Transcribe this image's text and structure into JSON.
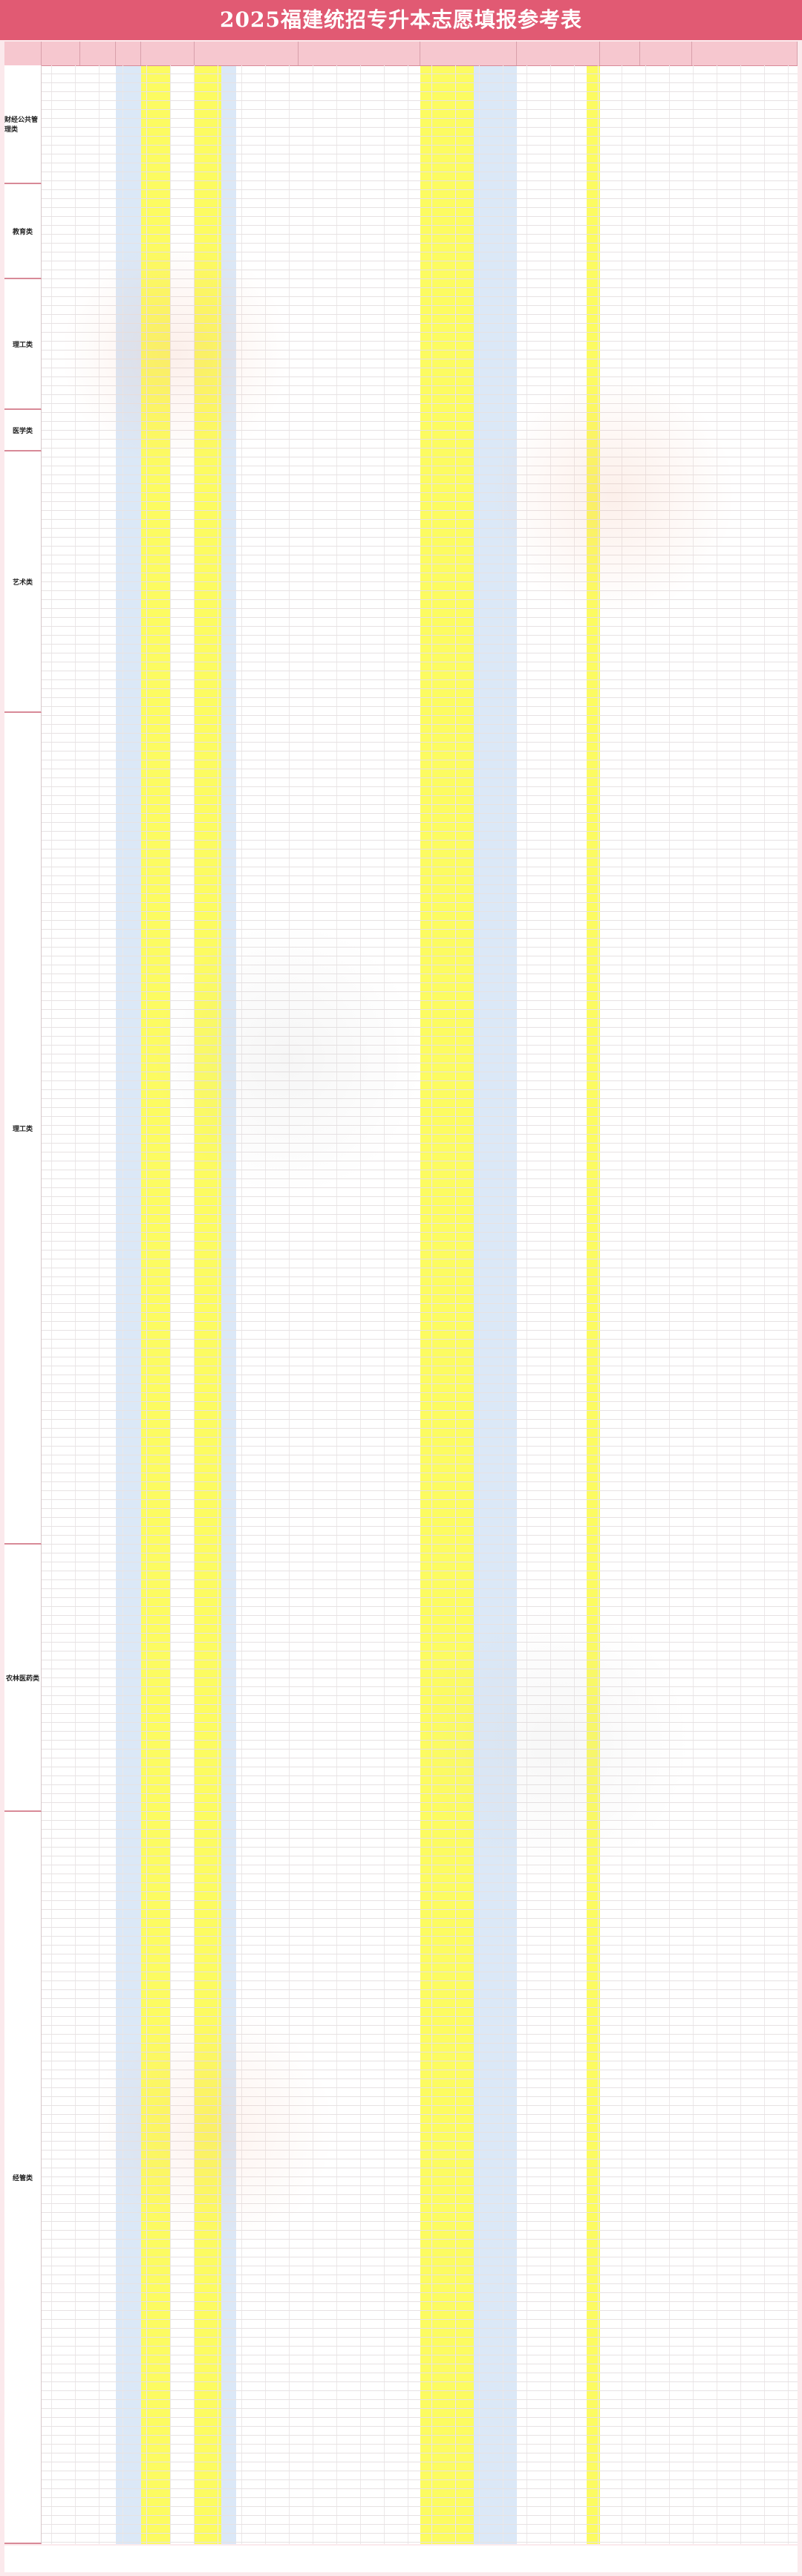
{
  "page": {
    "title": "2025福建统招专升本志愿填报参考表"
  },
  "colors": {
    "title_bg": "#e15a73",
    "page_bg": "#fbe9ec",
    "header_bg": "#f6c7cf",
    "highlight_yellow": "#fcfb61",
    "highlight_blue": "#dbe8f7"
  },
  "groups": [
    {
      "name": "财经公共管理类"
    },
    {
      "name": "教育类"
    },
    {
      "name": "理工类"
    },
    {
      "name": "医学类"
    },
    {
      "name": "艺术类"
    },
    {
      "name": "理工类"
    },
    {
      "name": "农林医药类"
    },
    {
      "name": "经管类"
    }
  ]
}
